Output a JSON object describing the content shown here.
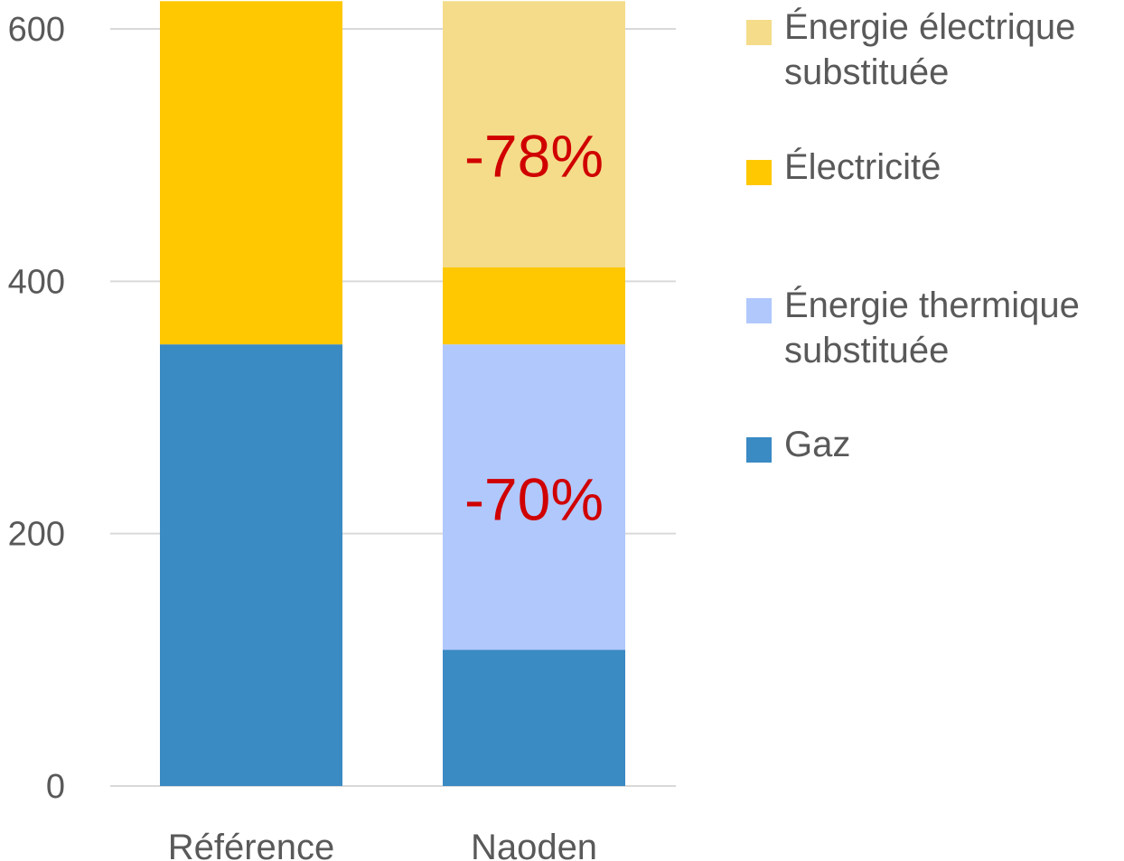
{
  "chart_data": {
    "type": "bar",
    "stacked": true,
    "categories": [
      "Référence",
      "Naoden"
    ],
    "series": [
      {
        "name": "Gaz",
        "color": "#3a8ac4",
        "values": [
          350,
          108
        ]
      },
      {
        "name": "Énergie thermique\nsubstituée",
        "color": "#b0c8fc",
        "values": [
          0,
          242
        ]
      },
      {
        "name": "Électricité",
        "color": "#ffc800",
        "values": [
          272,
          61
        ]
      },
      {
        "name": "Énergie électrique\nsubstituée",
        "color": "#f4dc8a",
        "values": [
          0,
          211
        ]
      }
    ],
    "legend_order": [
      3,
      2,
      1,
      0
    ],
    "ylim": [
      0,
      600
    ],
    "yticks": [
      "0",
      "200",
      "400",
      "600"
    ],
    "grid": true,
    "legend": "right",
    "annotations": [
      {
        "text": "-78%",
        "category": "Naoden",
        "y": 500
      },
      {
        "text": "-70%",
        "category": "Naoden",
        "y": 228
      }
    ]
  }
}
